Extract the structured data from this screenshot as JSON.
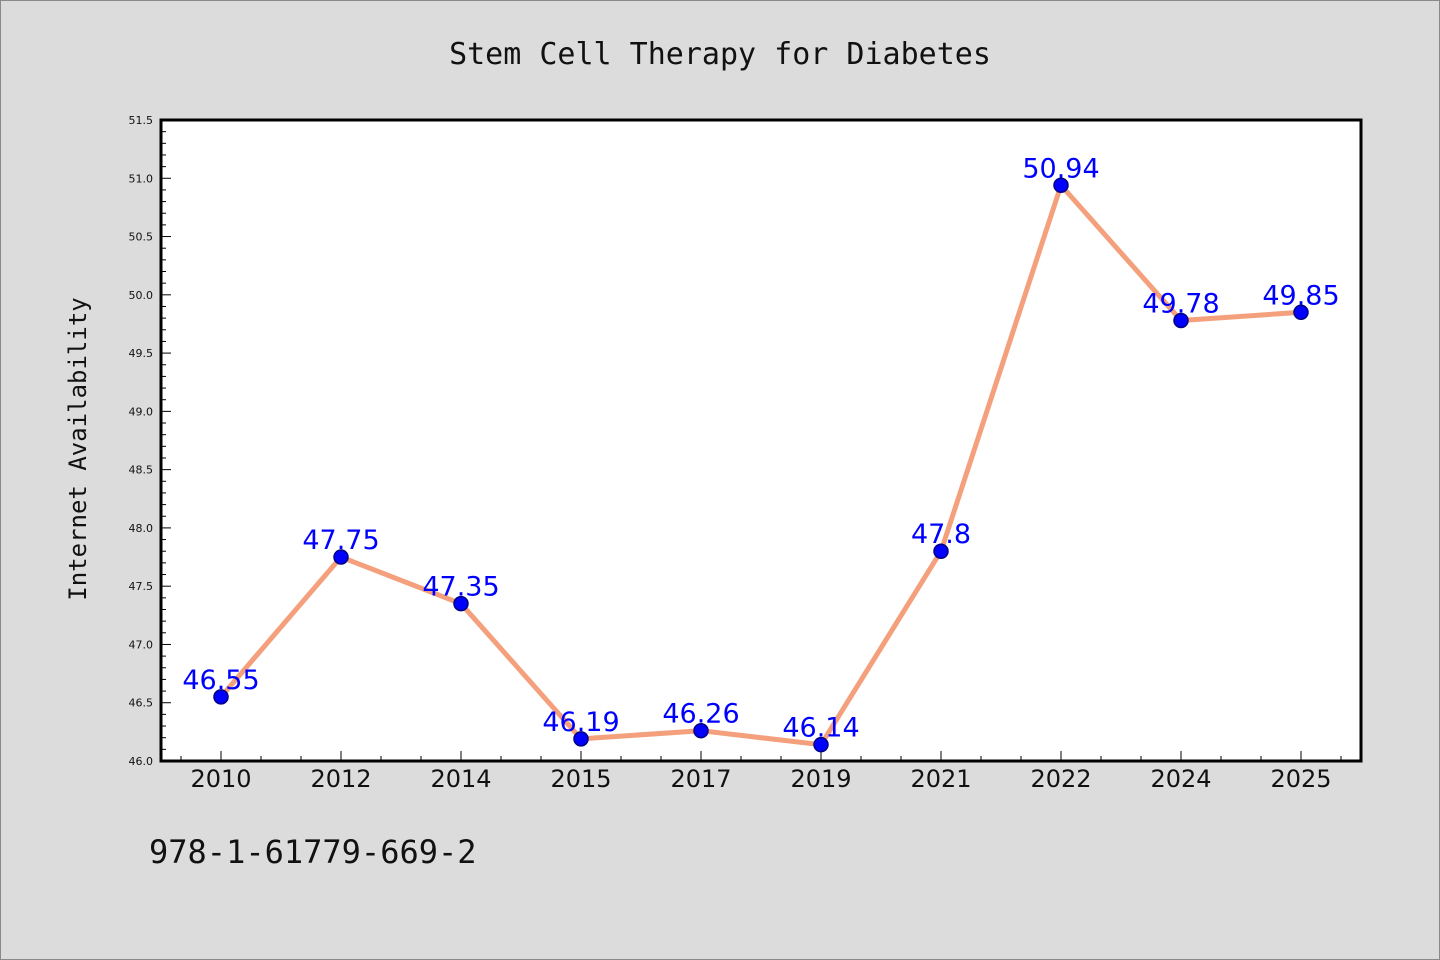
{
  "chart_data": {
    "type": "line",
    "title": "Stem Cell Therapy for Diabetes",
    "xlabel": "",
    "ylabel": "Internet Availability",
    "categories": [
      "2010",
      "2012",
      "2014",
      "2015",
      "2017",
      "2019",
      "2021",
      "2022",
      "2024",
      "2025"
    ],
    "values": [
      46.55,
      47.75,
      47.35,
      46.19,
      46.26,
      46.14,
      47.8,
      50.94,
      49.78,
      49.85
    ],
    "data_labels": [
      "46.55",
      "47.75",
      "47.35",
      "46.19",
      "46.26",
      "46.14",
      "47.8",
      "50.94",
      "49.78",
      "49.85"
    ],
    "ylim": [
      46.0,
      51.5
    ],
    "yticks": [
      "46.0",
      "46.5",
      "47.0",
      "47.5",
      "48.0",
      "48.5",
      "49.0",
      "49.5",
      "50.0",
      "50.5",
      "51.0",
      "51.5"
    ],
    "grid": false,
    "legend": "none",
    "colors": {
      "line": "#f4a07c",
      "marker": "#0000ff",
      "marker_edge": "#000080",
      "data_label": "#0000ff",
      "background": "#dcdcdc",
      "plot_background": "#ffffff"
    }
  },
  "footnote": "978-1-61779-669-2"
}
